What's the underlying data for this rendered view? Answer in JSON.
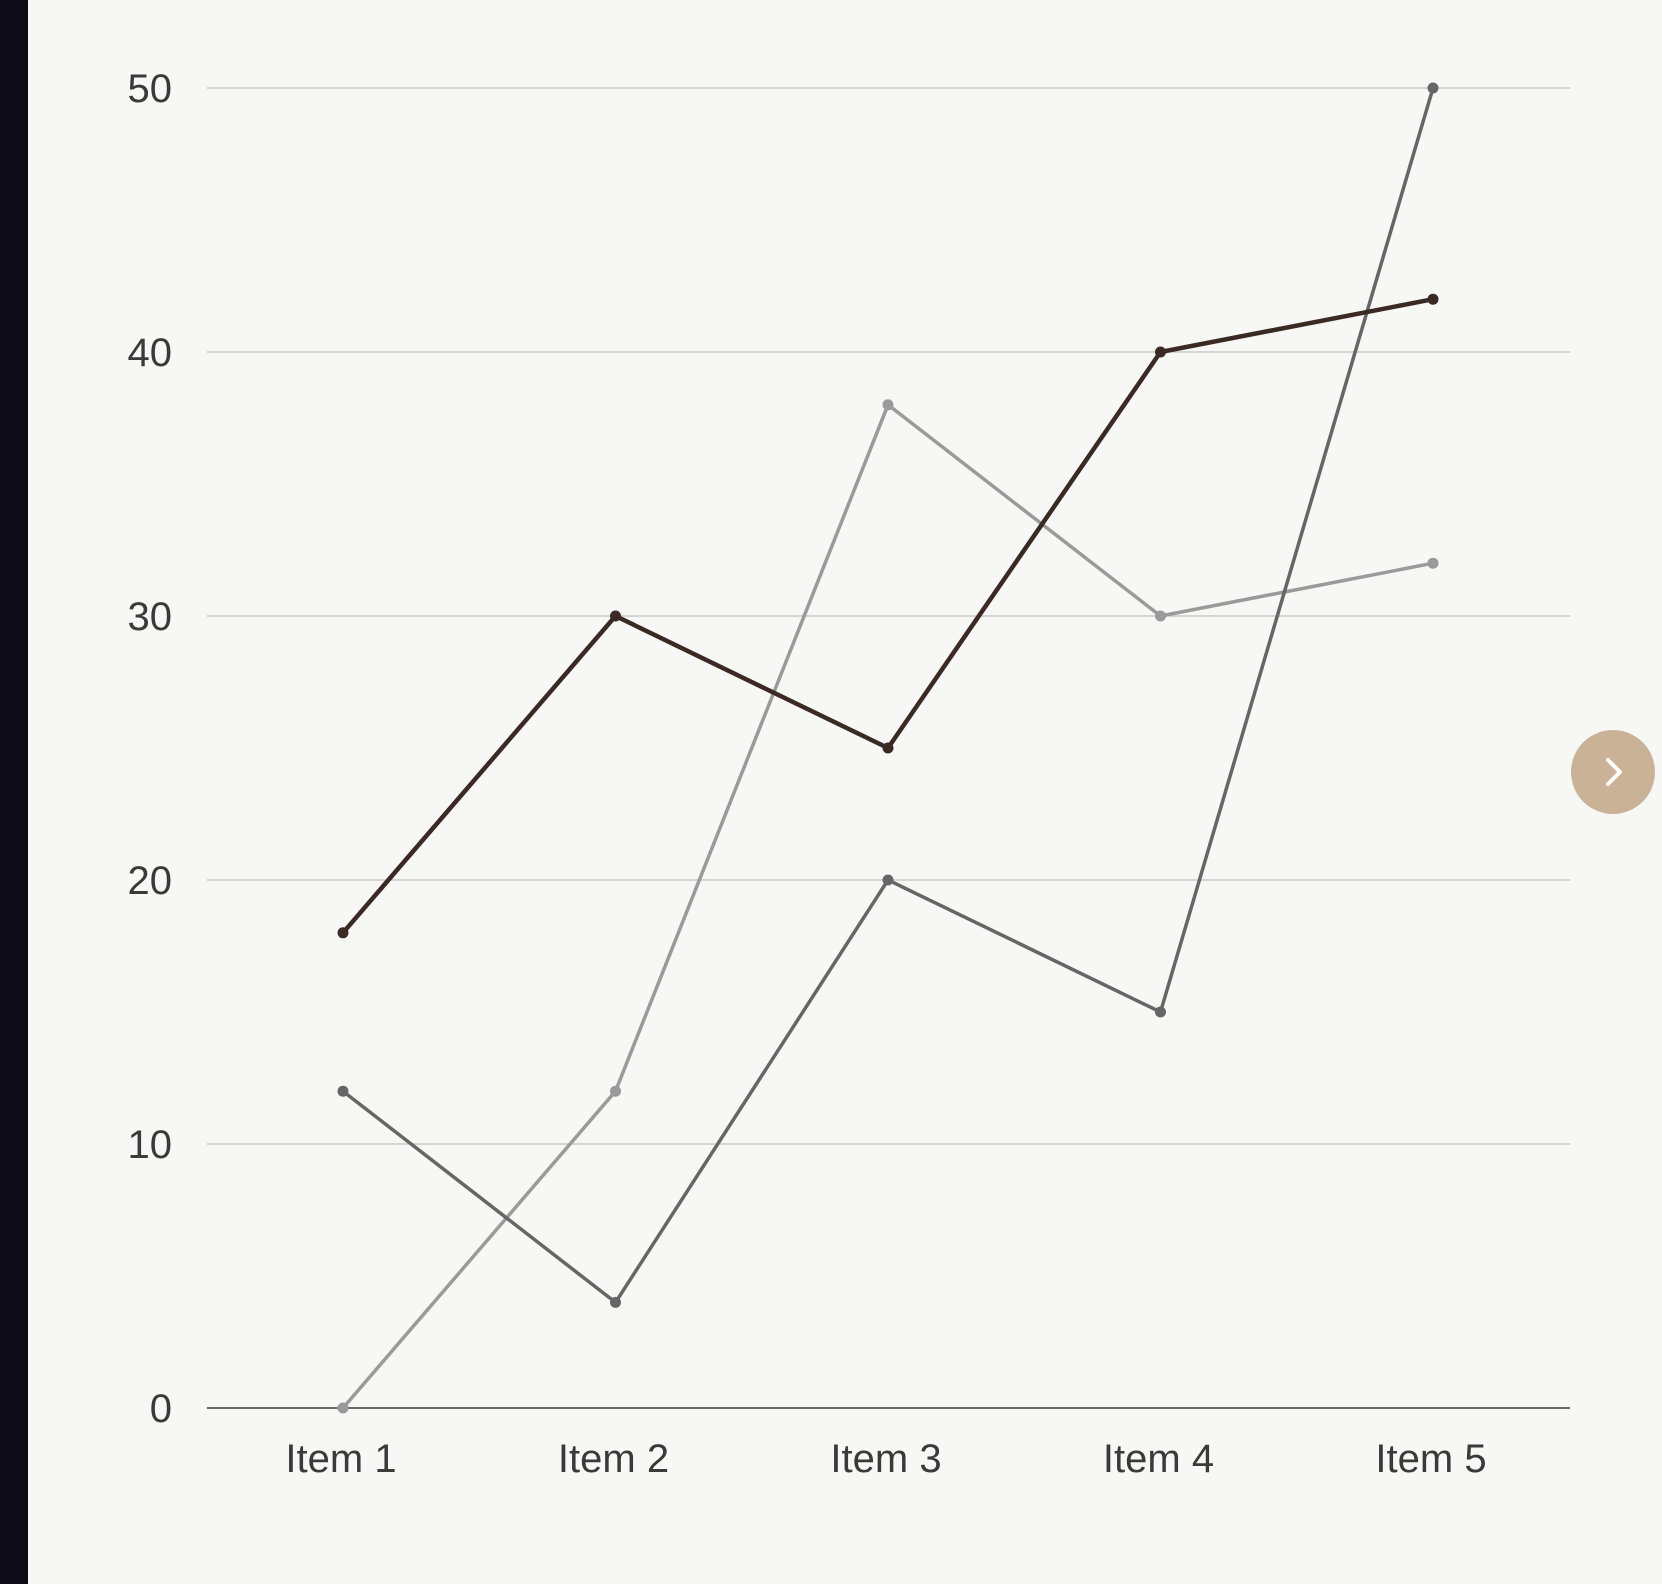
{
  "chart_data": {
    "type": "line",
    "title": "",
    "xlabel": "",
    "ylabel": "",
    "categories": [
      "Item 1",
      "Item 2",
      "Item 3",
      "Item 4",
      "Item 5"
    ],
    "y_ticks": [
      "0",
      "10",
      "20",
      "30",
      "40",
      "50"
    ],
    "ylim": [
      0,
      50
    ],
    "grid": true,
    "legend": "none",
    "series": [
      {
        "color": "#3b2a24",
        "values": [
          18,
          30,
          25,
          40,
          42
        ]
      },
      {
        "color": "#9a9a9a",
        "values": [
          0,
          12,
          38,
          30,
          32
        ]
      },
      {
        "color": "#666666",
        "values": [
          12,
          4,
          20,
          15,
          50
        ]
      }
    ]
  },
  "controls": {
    "next_icon": "chevron-right-icon"
  }
}
